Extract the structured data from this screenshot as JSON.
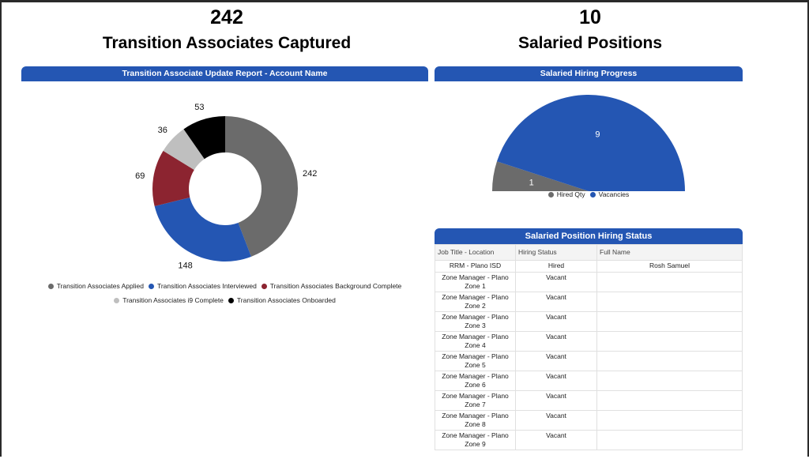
{
  "kpis": [
    {
      "value": "242",
      "label": "Transition Associates Captured"
    },
    {
      "value": "10",
      "label": "Salaried Positions"
    }
  ],
  "donut": {
    "title": "Transition Associate Update Report - Account Name",
    "chart_data": {
      "type": "pie",
      "hole": true,
      "categories": [
        "Transition Associates Applied",
        "Transition Associates Interviewed",
        "Transition Associates Background Complete",
        "Transition Associates i9 Complete",
        "Transition Associates Onboarded"
      ],
      "values": [
        242,
        148,
        69,
        36,
        53
      ],
      "colors": [
        "#6b6b6b",
        "#2456b3",
        "#8c2430",
        "#bfbfbf",
        "#000000"
      ],
      "legend": "bottom"
    }
  },
  "gauge": {
    "title": "Salaried Hiring Progress",
    "chart_data": {
      "type": "pie",
      "half": true,
      "categories": [
        "Hired Qty",
        "Vacancies"
      ],
      "values": [
        1,
        9
      ],
      "colors": [
        "#6b6b6b",
        "#2456b3"
      ],
      "legend": "bottom"
    }
  },
  "table": {
    "title": "Salaried Position Hiring Status",
    "headers": [
      "Job Title - Location",
      "Hiring Status",
      "Full Name"
    ],
    "rows": [
      [
        "RRM - Plano ISD",
        "Hired",
        "Rosh Samuel"
      ],
      [
        "Zone Manager - Plano Zone 1",
        "Vacant",
        ""
      ],
      [
        "Zone Manager - Plano Zone 2",
        "Vacant",
        ""
      ],
      [
        "Zone Manager - Plano Zone 3",
        "Vacant",
        ""
      ],
      [
        "Zone Manager - Plano Zone 4",
        "Vacant",
        ""
      ],
      [
        "Zone Manager - Plano Zone 5",
        "Vacant",
        ""
      ],
      [
        "Zone Manager - Plano Zone 6",
        "Vacant",
        ""
      ],
      [
        "Zone Manager - Plano Zone 7",
        "Vacant",
        ""
      ],
      [
        "Zone Manager - Plano Zone 8",
        "Vacant",
        ""
      ],
      [
        "Zone Manager - Plano Zone 9",
        "Vacant",
        ""
      ]
    ]
  }
}
